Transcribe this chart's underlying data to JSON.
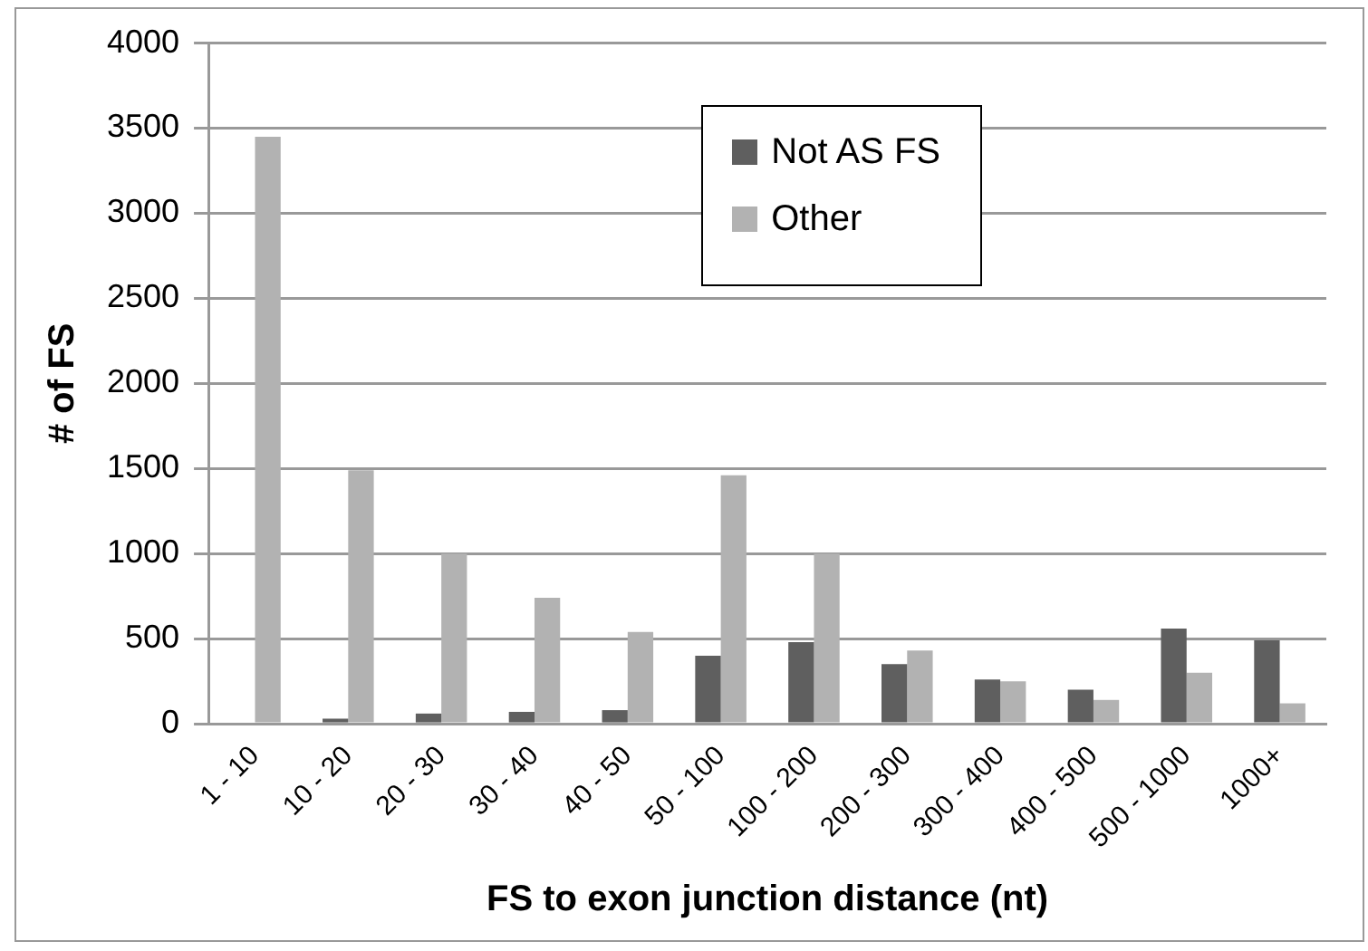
{
  "chart_data": {
    "type": "bar",
    "xlabel": "FS to exon junction distance (nt)",
    "ylabel": "# of FS",
    "categories": [
      "1 - 10",
      "10 - 20",
      "20 - 30",
      "30 - 40",
      "40 - 50",
      "50 - 100",
      "100 - 200",
      "200 - 300",
      "300 - 400",
      "400 - 500",
      "500 - 1000",
      "1000+"
    ],
    "series": [
      {
        "name": "Not AS FS",
        "color": "#5f5f5f",
        "values": [
          0,
          30,
          60,
          70,
          80,
          400,
          480,
          350,
          260,
          200,
          560,
          490
        ]
      },
      {
        "name": "Other",
        "color": "#b2b2b2",
        "values": [
          3450,
          1490,
          1000,
          740,
          540,
          1460,
          1000,
          430,
          250,
          140,
          300,
          120
        ]
      }
    ],
    "ylim": [
      0,
      4000
    ],
    "yticks": [
      0,
      500,
      1000,
      1500,
      2000,
      2500,
      3000,
      3500,
      4000
    ],
    "grid": "y",
    "legend": "top right"
  }
}
